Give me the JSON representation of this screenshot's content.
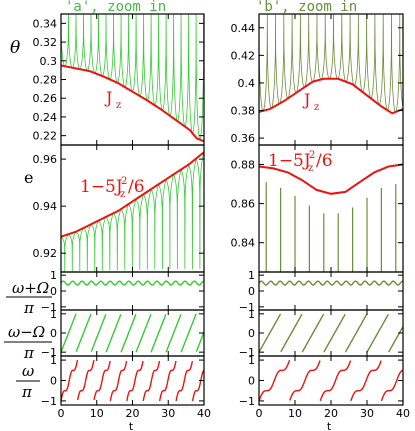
{
  "colors": {
    "green_light": "#33cc33",
    "green_dark": "#6b8e3a",
    "red": "#ee1111",
    "axis": "#000000"
  },
  "columns": [
    {
      "title": "'a', zoom in",
      "title_color": "#44bb44"
    },
    {
      "title": "'b', zoom in",
      "title_color": "#6b8e3a"
    }
  ],
  "row_labels": {
    "theta": "θ",
    "e": "e",
    "omega_plus": "ω+Ω",
    "omega_minus": "ω−Ω",
    "omega": "ω",
    "pi": "π"
  },
  "x_label": "t",
  "annotations": {
    "jz": "J",
    "jz_sub": "z",
    "one_minus": "1−5J",
    "sq": "2",
    "over6": "/6"
  },
  "chart_data": [
    {
      "type": "line",
      "panel": "theta-a",
      "xlim": [
        0,
        40
      ],
      "ylim": [
        0.21,
        0.35
      ],
      "yticks": [
        0.22,
        0.24,
        0.26,
        0.28,
        0.3,
        0.32,
        0.34
      ],
      "series": [
        {
          "name": "J_z",
          "color": "red",
          "x": [
            0,
            4,
            8,
            12,
            16,
            20,
            24,
            28,
            32,
            36,
            38,
            40
          ],
          "y": [
            0.295,
            0.292,
            0.289,
            0.283,
            0.276,
            0.267,
            0.258,
            0.248,
            0.237,
            0.226,
            0.217,
            0.214
          ]
        },
        {
          "color": "green_light",
          "kind": "spikes",
          "period": 2.1,
          "peak": 0.35
        }
      ]
    },
    {
      "type": "line",
      "panel": "theta-b",
      "xlim": [
        0,
        40
      ],
      "ylim": [
        0.355,
        0.45
      ],
      "yticks": [
        0.36,
        0.38,
        0.4,
        0.42,
        0.44
      ],
      "series": [
        {
          "name": "J_z",
          "color": "red",
          "x": [
            0,
            3,
            7,
            11,
            15,
            18,
            22,
            26,
            30,
            34,
            37,
            40
          ],
          "y": [
            0.379,
            0.381,
            0.387,
            0.394,
            0.401,
            0.403,
            0.403,
            0.399,
            0.391,
            0.383,
            0.378,
            0.381
          ]
        },
        {
          "color": "green_dark",
          "kind": "spikes",
          "period": 2.3,
          "peak": 0.45
        }
      ]
    },
    {
      "type": "line",
      "panel": "e-a",
      "xlim": [
        0,
        40
      ],
      "ylim": [
        0.912,
        0.966
      ],
      "yticks": [
        0.92,
        0.94,
        0.96
      ],
      "series": [
        {
          "name": "1-5J_z^2/6",
          "color": "red",
          "x": [
            0,
            4,
            8,
            12,
            16,
            20,
            24,
            28,
            32,
            36,
            40
          ],
          "y": [
            0.927,
            0.929,
            0.932,
            0.935,
            0.938,
            0.942,
            0.946,
            0.95,
            0.954,
            0.958,
            0.963
          ]
        },
        {
          "color": "green_light",
          "kind": "dips",
          "period": 2.1,
          "trough": 0.912
        }
      ]
    },
    {
      "type": "line",
      "panel": "e-b",
      "xlim": [
        0,
        40
      ],
      "ylim": [
        0.825,
        0.89
      ],
      "yticks": [
        0.84,
        0.86,
        0.88
      ],
      "series": [
        {
          "name": "1-5J_z^2/6",
          "color": "red",
          "x": [
            0,
            4,
            8,
            12,
            16,
            20,
            24,
            28,
            32,
            36,
            40
          ],
          "y": [
            0.879,
            0.878,
            0.876,
            0.872,
            0.867,
            0.865,
            0.866,
            0.871,
            0.876,
            0.879,
            0.88
          ]
        },
        {
          "color": "green_dark",
          "kind": "spikes",
          "x": [
            2,
            6,
            10,
            14,
            18,
            22,
            26,
            30,
            34,
            38
          ],
          "y": [
            0.871,
            0.868,
            0.864,
            0.859,
            0.855,
            0.855,
            0.858,
            0.863,
            0.868,
            0.87
          ],
          "base": 0.825
        }
      ]
    },
    {
      "type": "line",
      "panel": "wp-a",
      "xlim": [
        0,
        40
      ],
      "ylim": [
        -1.2,
        1.2
      ],
      "yticks": [
        -1,
        0,
        1
      ],
      "color": "green_light"
    },
    {
      "type": "line",
      "panel": "wp-b",
      "xlim": [
        0,
        40
      ],
      "ylim": [
        -1.2,
        1.2
      ],
      "yticks": [
        -1,
        0,
        1
      ],
      "color": "green_dark"
    },
    {
      "type": "line",
      "panel": "wm-a",
      "xlim": [
        0,
        40
      ],
      "ylim": [
        -1.2,
        1.2
      ],
      "yticks": [
        -1,
        0,
        1
      ],
      "color": "green_light"
    },
    {
      "type": "line",
      "panel": "wm-b",
      "xlim": [
        0,
        40
      ],
      "ylim": [
        -1.2,
        1.2
      ],
      "yticks": [
        -1,
        0,
        1
      ],
      "color": "green_dark"
    },
    {
      "type": "line",
      "panel": "w-a",
      "xlim": [
        0,
        40
      ],
      "ylim": [
        -1.2,
        1.2
      ],
      "yticks": [
        -1,
        0,
        1
      ],
      "color": "red"
    },
    {
      "type": "line",
      "panel": "w-b",
      "xlim": [
        0,
        40
      ],
      "ylim": [
        -1.2,
        1.2
      ],
      "yticks": [
        -1,
        0,
        1
      ],
      "color": "red"
    }
  ],
  "xticks": [
    0,
    10,
    20,
    30,
    40
  ]
}
